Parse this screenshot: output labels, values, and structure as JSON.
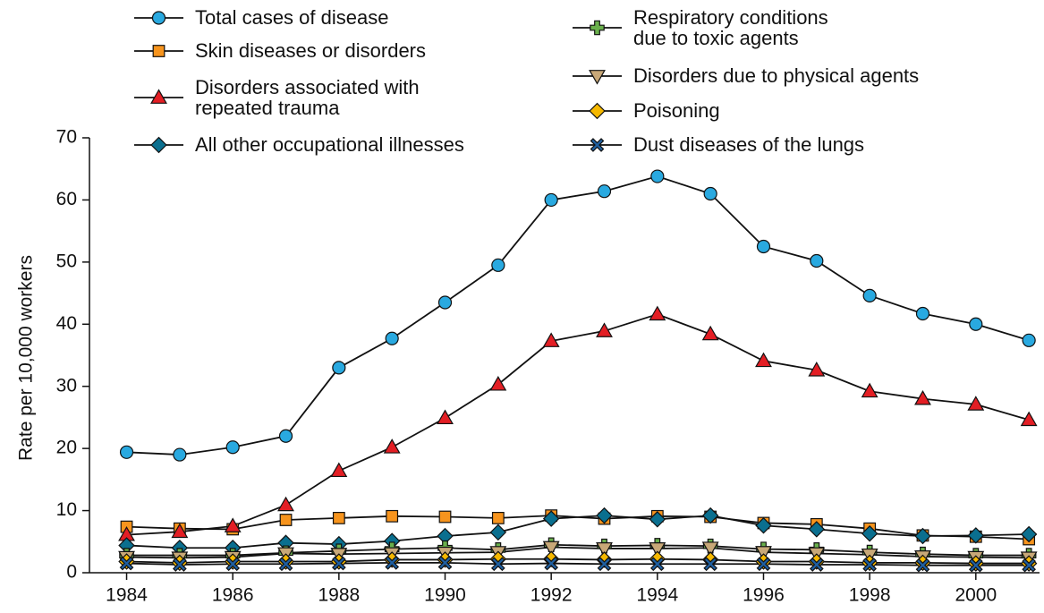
{
  "chart_data": {
    "type": "line",
    "y_label": "Rate per 10,000 workers",
    "x": [
      1984,
      1985,
      1986,
      1987,
      1988,
      1989,
      1990,
      1991,
      1992,
      1993,
      1994,
      1995,
      1996,
      1997,
      1998,
      1999,
      2000,
      2001
    ],
    "xlim": [
      1983.3,
      2001.2
    ],
    "xticks": [
      1984,
      1986,
      1988,
      1990,
      1992,
      1994,
      1996,
      1998,
      2000
    ],
    "ylim": [
      0,
      70
    ],
    "yticks": [
      0,
      10,
      20,
      30,
      40,
      50,
      60,
      70
    ],
    "grid": false,
    "series": [
      {
        "name": "Total cases of disease",
        "color": "#29a9e0",
        "marker": "circle",
        "values": [
          19.4,
          19.0,
          20.2,
          22.0,
          33.0,
          37.7,
          43.5,
          49.5,
          60.0,
          61.4,
          63.8,
          61.0,
          52.5,
          50.2,
          44.6,
          41.7,
          40.0,
          37.4
        ]
      },
      {
        "name": "Skin diseases or disorders",
        "color": "#f7941d",
        "marker": "square",
        "values": [
          7.4,
          7.1,
          7.0,
          8.5,
          8.8,
          9.1,
          9.0,
          8.8,
          9.2,
          8.7,
          9.1,
          9.0,
          8.0,
          7.8,
          7.1,
          6.0,
          5.8,
          5.4
        ]
      },
      {
        "name": "Disorders associated with\nrepeated trauma",
        "color": "#e31e24",
        "marker": "triangle-up",
        "values": [
          6.1,
          6.6,
          7.5,
          10.9,
          16.4,
          20.2,
          24.9,
          30.3,
          37.3,
          38.9,
          41.6,
          38.4,
          34.1,
          32.6,
          29.2,
          28.0,
          27.1,
          24.6
        ]
      },
      {
        "name": "All other occupational illnesses",
        "color": "#0a6f8f",
        "marker": "diamond",
        "values": [
          4.4,
          4.0,
          4.0,
          4.8,
          4.6,
          5.1,
          5.9,
          6.5,
          8.7,
          9.2,
          8.6,
          9.2,
          7.6,
          7.0,
          6.3,
          5.9,
          6.0,
          6.2
        ]
      },
      {
        "name": "Respiratory conditions\ndue to toxic agents",
        "color": "#6ab04c",
        "marker": "plus",
        "values": [
          2.8,
          2.8,
          2.8,
          3.2,
          3.5,
          3.8,
          4.0,
          3.7,
          4.5,
          4.3,
          4.4,
          4.3,
          3.8,
          3.7,
          3.3,
          3.0,
          2.8,
          2.8
        ]
      },
      {
        "name": "Disorders due to physical agents",
        "color": "#c8a878",
        "marker": "triangle-down",
        "values": [
          2.5,
          2.4,
          2.5,
          3.1,
          3.0,
          3.1,
          3.2,
          3.3,
          4.1,
          3.9,
          3.9,
          4.0,
          3.3,
          3.1,
          2.9,
          2.6,
          2.5,
          2.4
        ]
      },
      {
        "name": "Poisoning",
        "color": "#f5b800",
        "marker": "diamond",
        "values": [
          1.8,
          1.6,
          1.8,
          1.8,
          1.8,
          2.1,
          2.1,
          2.2,
          2.2,
          2.1,
          2.2,
          2.1,
          1.8,
          1.8,
          1.6,
          1.6,
          1.5,
          1.5
        ]
      },
      {
        "name": "Dust diseases of the lungs",
        "color": "#1f5fa0",
        "marker": "cross",
        "values": [
          1.5,
          1.3,
          1.4,
          1.4,
          1.5,
          1.6,
          1.6,
          1.4,
          1.5,
          1.4,
          1.4,
          1.4,
          1.4,
          1.3,
          1.3,
          1.2,
          1.2,
          1.2
        ]
      }
    ]
  }
}
